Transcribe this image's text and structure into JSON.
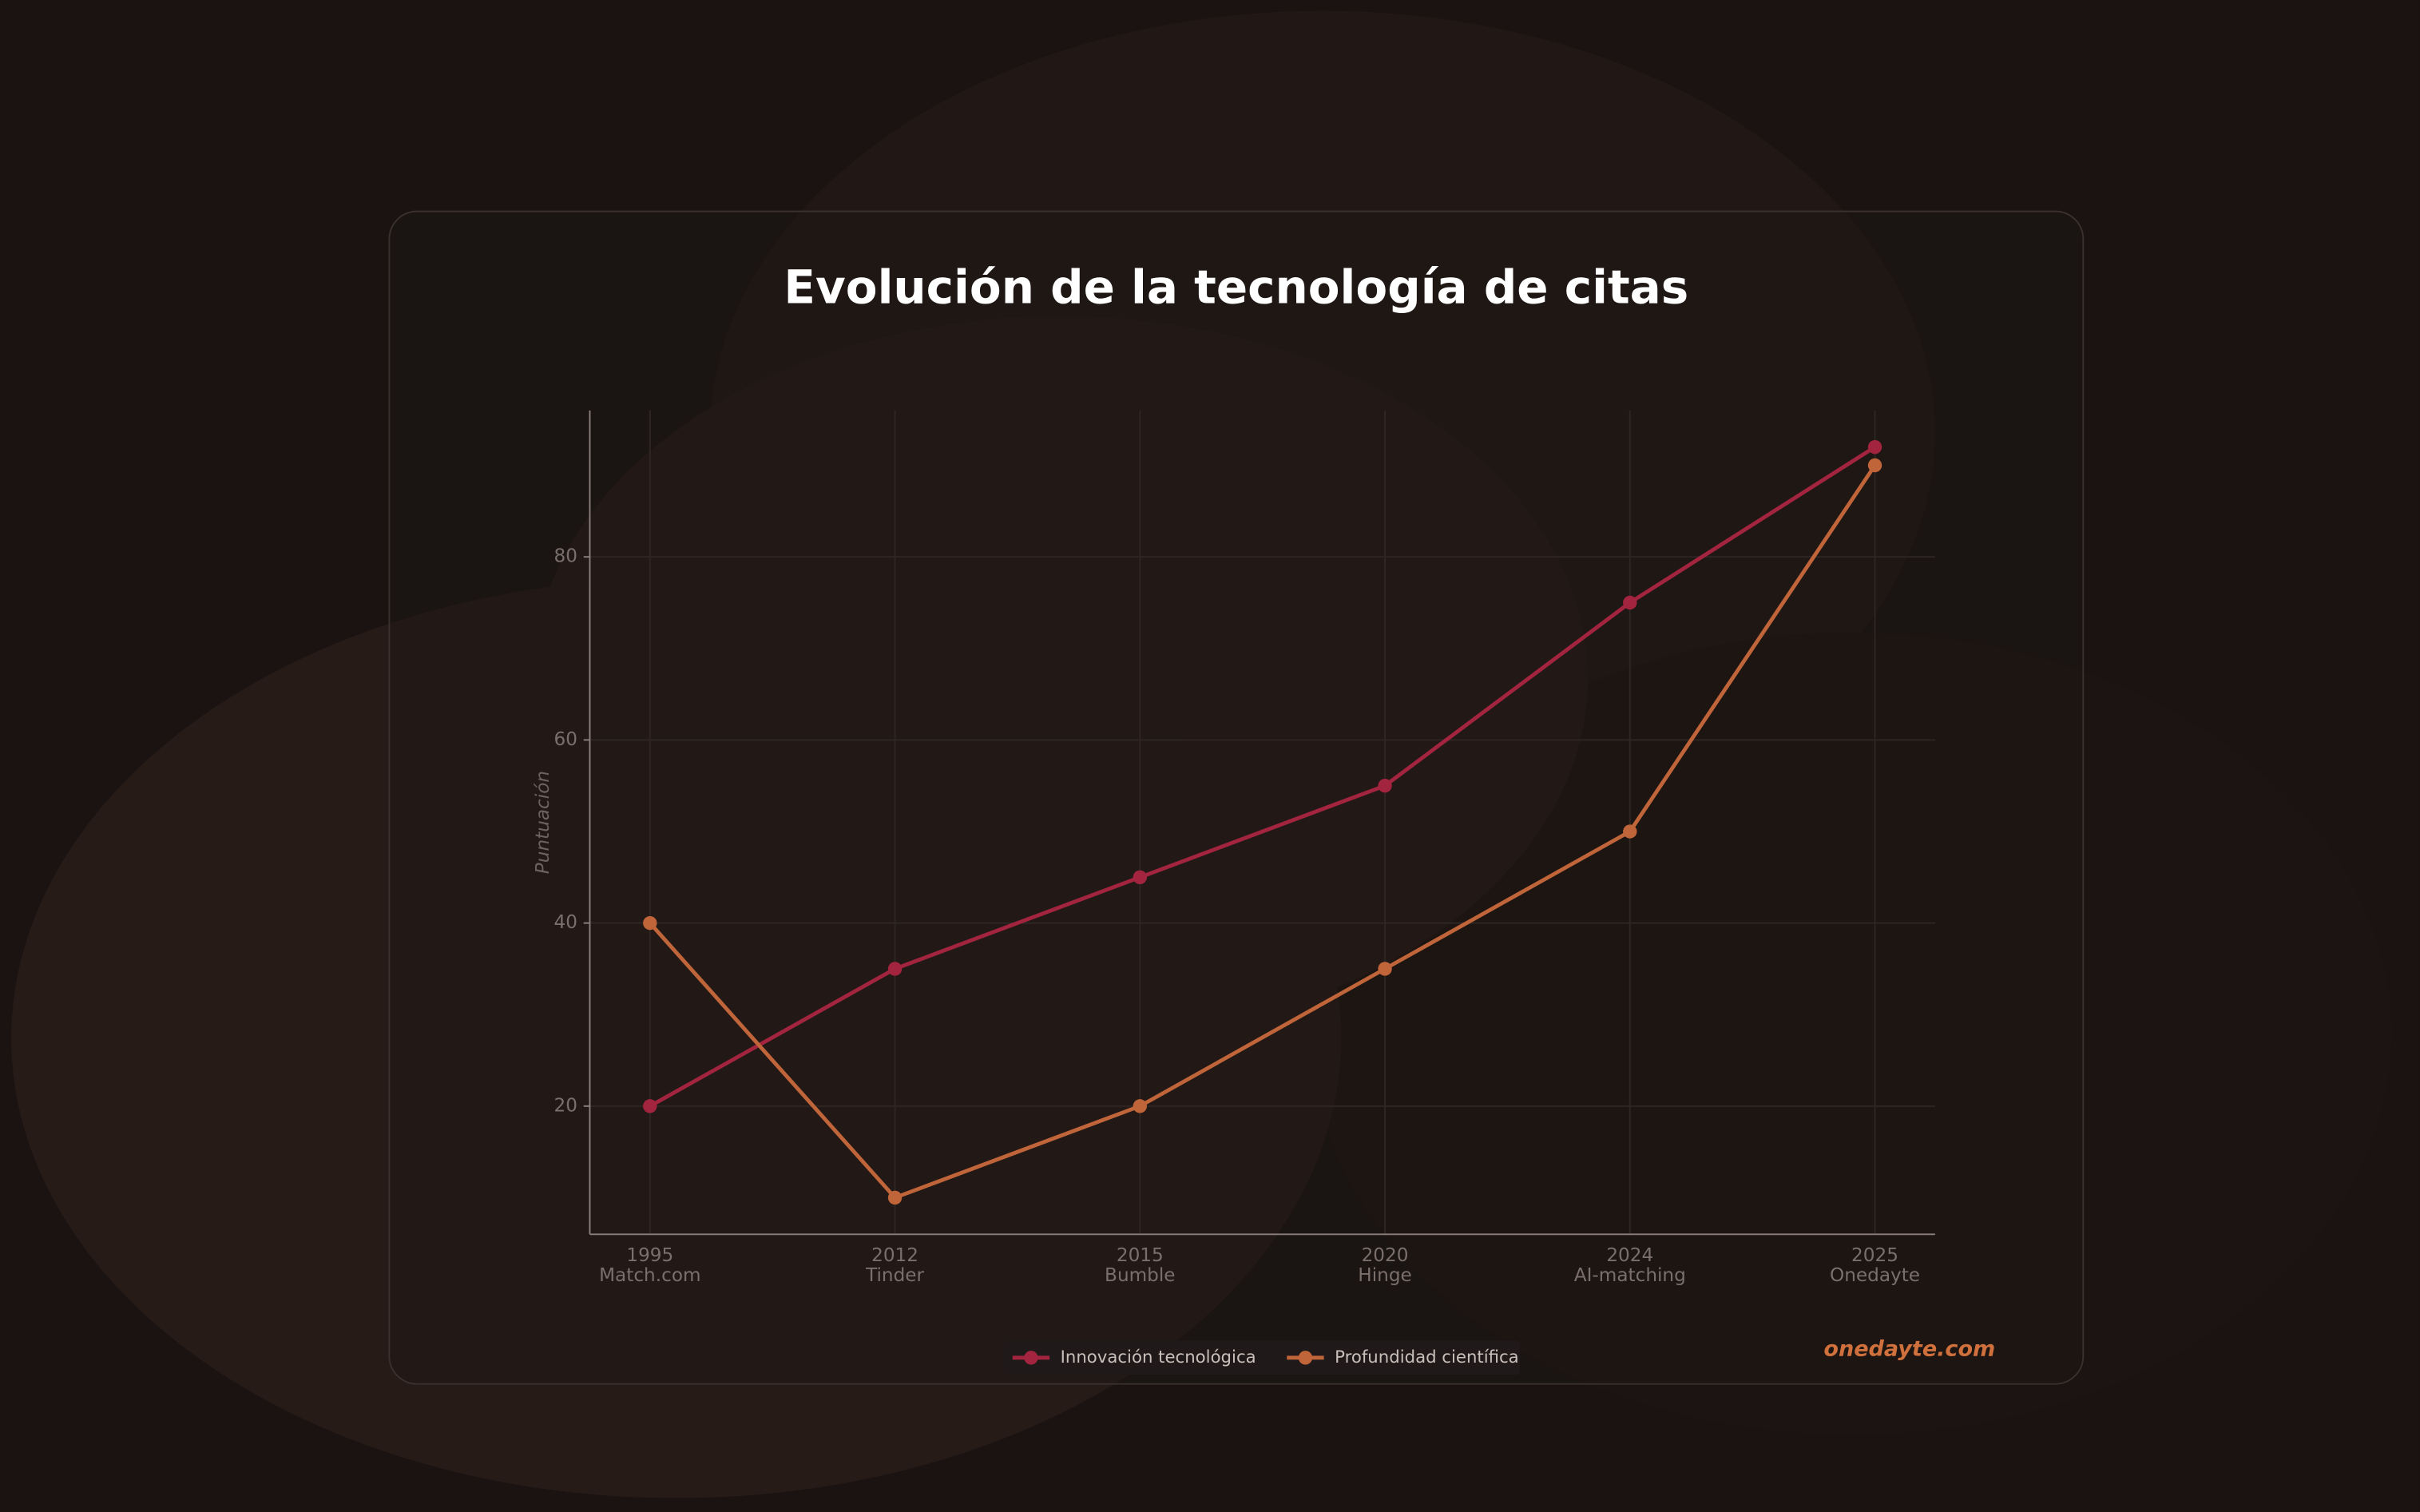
{
  "chart_data": {
    "type": "line",
    "title": "Evolución de la tecnología de citas",
    "y_label": "Puntuación",
    "categories": [
      "1995",
      "2012",
      "2015",
      "2020",
      "2024",
      "2025"
    ],
    "category_sublabels": [
      "Match.com",
      "Tinder",
      "Bumble",
      "Hinge",
      "AI-matching",
      "Onedayte"
    ],
    "series": [
      {
        "name": "Innovación tecnológica",
        "color": "#a3243f",
        "values": [
          20,
          35,
          45,
          55,
          75,
          92
        ]
      },
      {
        "name": "Profundidad científica",
        "color": "#c0643a",
        "values": [
          40,
          10,
          20,
          35,
          50,
          90
        ]
      }
    ],
    "ylim": [
      6,
      96
    ],
    "yticks": [
      20,
      40,
      60,
      80
    ],
    "grid": true,
    "legend": "bottom",
    "watermark": "onedayte.com"
  }
}
